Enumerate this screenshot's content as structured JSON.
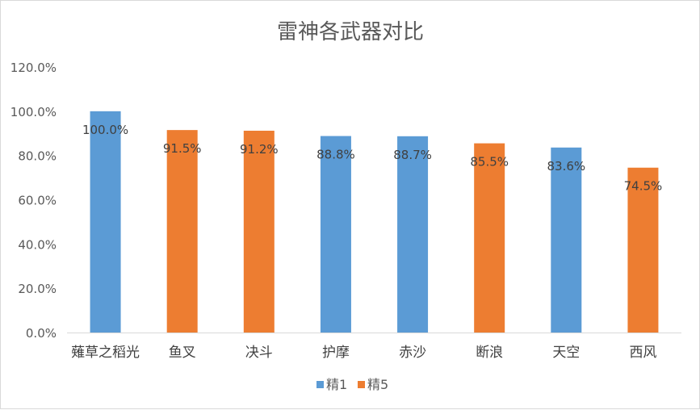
{
  "chart_data": {
    "type": "bar",
    "title": "雷神各武器对比",
    "categories": [
      "薙草之稻光",
      "鱼叉",
      "决斗",
      "护摩",
      "赤沙",
      "断浪",
      "天空",
      "西风"
    ],
    "values": [
      100.0,
      91.5,
      91.2,
      88.8,
      88.7,
      85.5,
      83.6,
      74.5
    ],
    "value_labels": [
      "100.0%",
      "91.5%",
      "91.2%",
      "88.8%",
      "88.7%",
      "85.5%",
      "83.6%",
      "74.5%"
    ],
    "point_series": [
      "精1",
      "精5",
      "精5",
      "精1",
      "精1",
      "精5",
      "精1",
      "精5"
    ],
    "series": [
      {
        "name": "精1",
        "color": "#5b9bd5"
      },
      {
        "name": "精5",
        "color": "#ed7d31"
      }
    ],
    "ylim": [
      0,
      120
    ],
    "yticks": [
      0,
      20,
      40,
      60,
      80,
      100,
      120
    ],
    "ytick_labels": [
      "0.0%",
      "20.0%",
      "40.0%",
      "60.0%",
      "80.0%",
      "100.0%",
      "120.0%"
    ],
    "xlabel": "",
    "ylabel": "",
    "grid": false,
    "legend_position": "bottom"
  }
}
